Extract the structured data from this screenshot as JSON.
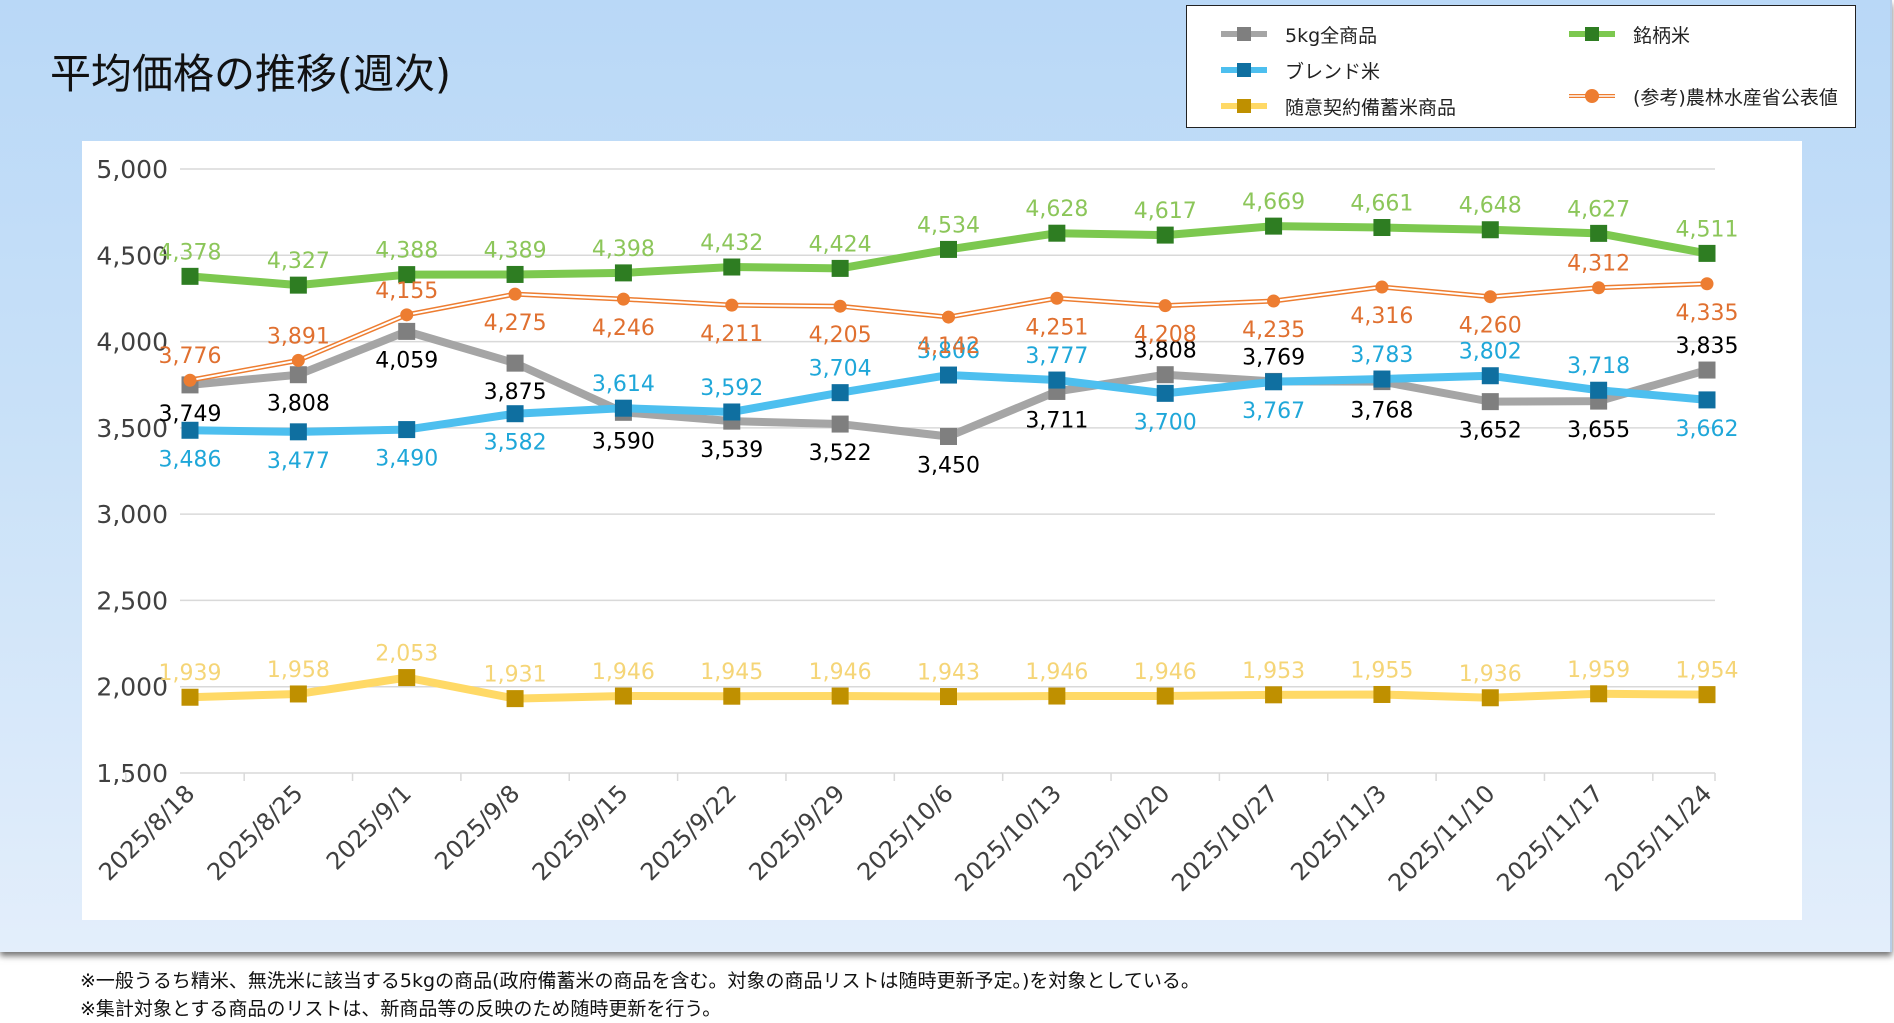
{
  "slide": {
    "title": "平均価格の推移(週次)",
    "footer_notes": [
      "※一般うるち精米、無洗米に該当する5kgの商品(政府備蓄米の商品を含む。対象の商品リストは随時更新予定。)を対象としている。",
      "※集計対象とする商品のリストは、新商品等の反映のため随時更新を行う。"
    ]
  },
  "chart_data": {
    "type": "line",
    "title": "平均価格の推移(週次)",
    "xlabel": "",
    "ylabel": "",
    "ylim": [
      1500,
      5000
    ],
    "yticks": [
      1500,
      2000,
      2500,
      3000,
      3500,
      4000,
      4500,
      5000
    ],
    "ytick_labels": [
      "1,500",
      "2,000",
      "2,500",
      "3,000",
      "3,500",
      "4,000",
      "4,500",
      "5,000"
    ],
    "grid": true,
    "legend_position": "top-right",
    "categories": [
      "2025/8/18",
      "2025/8/25",
      "2025/9/1",
      "2025/9/8",
      "2025/9/15",
      "2025/9/22",
      "2025/9/29",
      "2025/10/6",
      "2025/10/13",
      "2025/10/20",
      "2025/10/27",
      "2025/11/3",
      "2025/11/10",
      "2025/11/17",
      "2025/11/24"
    ],
    "series": [
      {
        "key": "all5kg",
        "name": "5kg全商品",
        "line_color": "#a5a5a5",
        "marker_color": "#7f7f7f",
        "label_color": "#000000",
        "marker": "square",
        "values": [
          3749,
          3808,
          4059,
          3875,
          3590,
          3539,
          3522,
          3450,
          3711,
          3808,
          3769,
          3768,
          3652,
          3655,
          3835
        ],
        "label_pos": [
          "below",
          "below",
          "below",
          "below",
          "below",
          "below",
          "below",
          "below",
          "below",
          "above",
          "above",
          "below",
          "below",
          "below",
          "above"
        ]
      },
      {
        "key": "blend",
        "name": "ブレンド米",
        "line_color": "#4dbfef",
        "marker_color": "#0f6fa0",
        "label_color": "#1fa7d9",
        "marker": "square",
        "values": [
          3486,
          3477,
          3490,
          3582,
          3614,
          3592,
          3704,
          3806,
          3777,
          3700,
          3767,
          3783,
          3802,
          3718,
          3662
        ],
        "label_pos": [
          "below",
          "below",
          "below",
          "below",
          "above",
          "above",
          "above",
          "above",
          "above",
          "below",
          "below",
          "above",
          "above",
          "above",
          "below"
        ]
      },
      {
        "key": "reserve",
        "name": "随意契約備蓄米商品",
        "line_color": "#ffd966",
        "marker_color": "#bf9000",
        "label_color": "#f5d577",
        "marker": "square",
        "values": [
          1939,
          1958,
          2053,
          1931,
          1946,
          1945,
          1946,
          1943,
          1946,
          1946,
          1953,
          1955,
          1936,
          1959,
          1954
        ],
        "label_pos": [
          "above",
          "above",
          "above",
          "above",
          "above",
          "above",
          "above",
          "above",
          "above",
          "above",
          "above",
          "above",
          "above",
          "above",
          "above"
        ]
      },
      {
        "key": "brand",
        "name": "銘柄米",
        "line_color": "#7cc84f",
        "marker_color": "#2e7d22",
        "label_color": "#8cc65a",
        "marker": "square",
        "values": [
          4378,
          4327,
          4388,
          4389,
          4398,
          4432,
          4424,
          4534,
          4628,
          4617,
          4669,
          4661,
          4648,
          4627,
          4511
        ],
        "label_pos": [
          "above",
          "above",
          "above",
          "above",
          "above",
          "above",
          "above",
          "above",
          "above",
          "above",
          "above",
          "above",
          "above",
          "above",
          "above"
        ]
      },
      {
        "key": "maff",
        "name": "(参考)農林水産省公表値",
        "line_color": "#ed7d31",
        "marker_color": "#ed7d31",
        "label_color": "#e07030",
        "marker": "circle",
        "double_line": true,
        "values": [
          3776,
          3891,
          4155,
          4275,
          4246,
          4211,
          4205,
          4142,
          4251,
          4208,
          4235,
          4316,
          4260,
          4312,
          4335
        ],
        "label_pos": [
          "above",
          "above",
          "above",
          "below",
          "below",
          "below",
          "below",
          "below",
          "below",
          "below",
          "below",
          "below",
          "below",
          "above",
          "below"
        ]
      }
    ],
    "legend": [
      {
        "series": "all5kg",
        "label": "5kg全商品"
      },
      {
        "series": "brand",
        "label": "銘柄米"
      },
      {
        "series": "blend",
        "label": "ブレンド米"
      },
      {
        "series": "reserve",
        "label": "随意契約備蓄米商品"
      },
      {
        "series": "maff",
        "label": "(参考)農林水産省公表値"
      }
    ]
  }
}
